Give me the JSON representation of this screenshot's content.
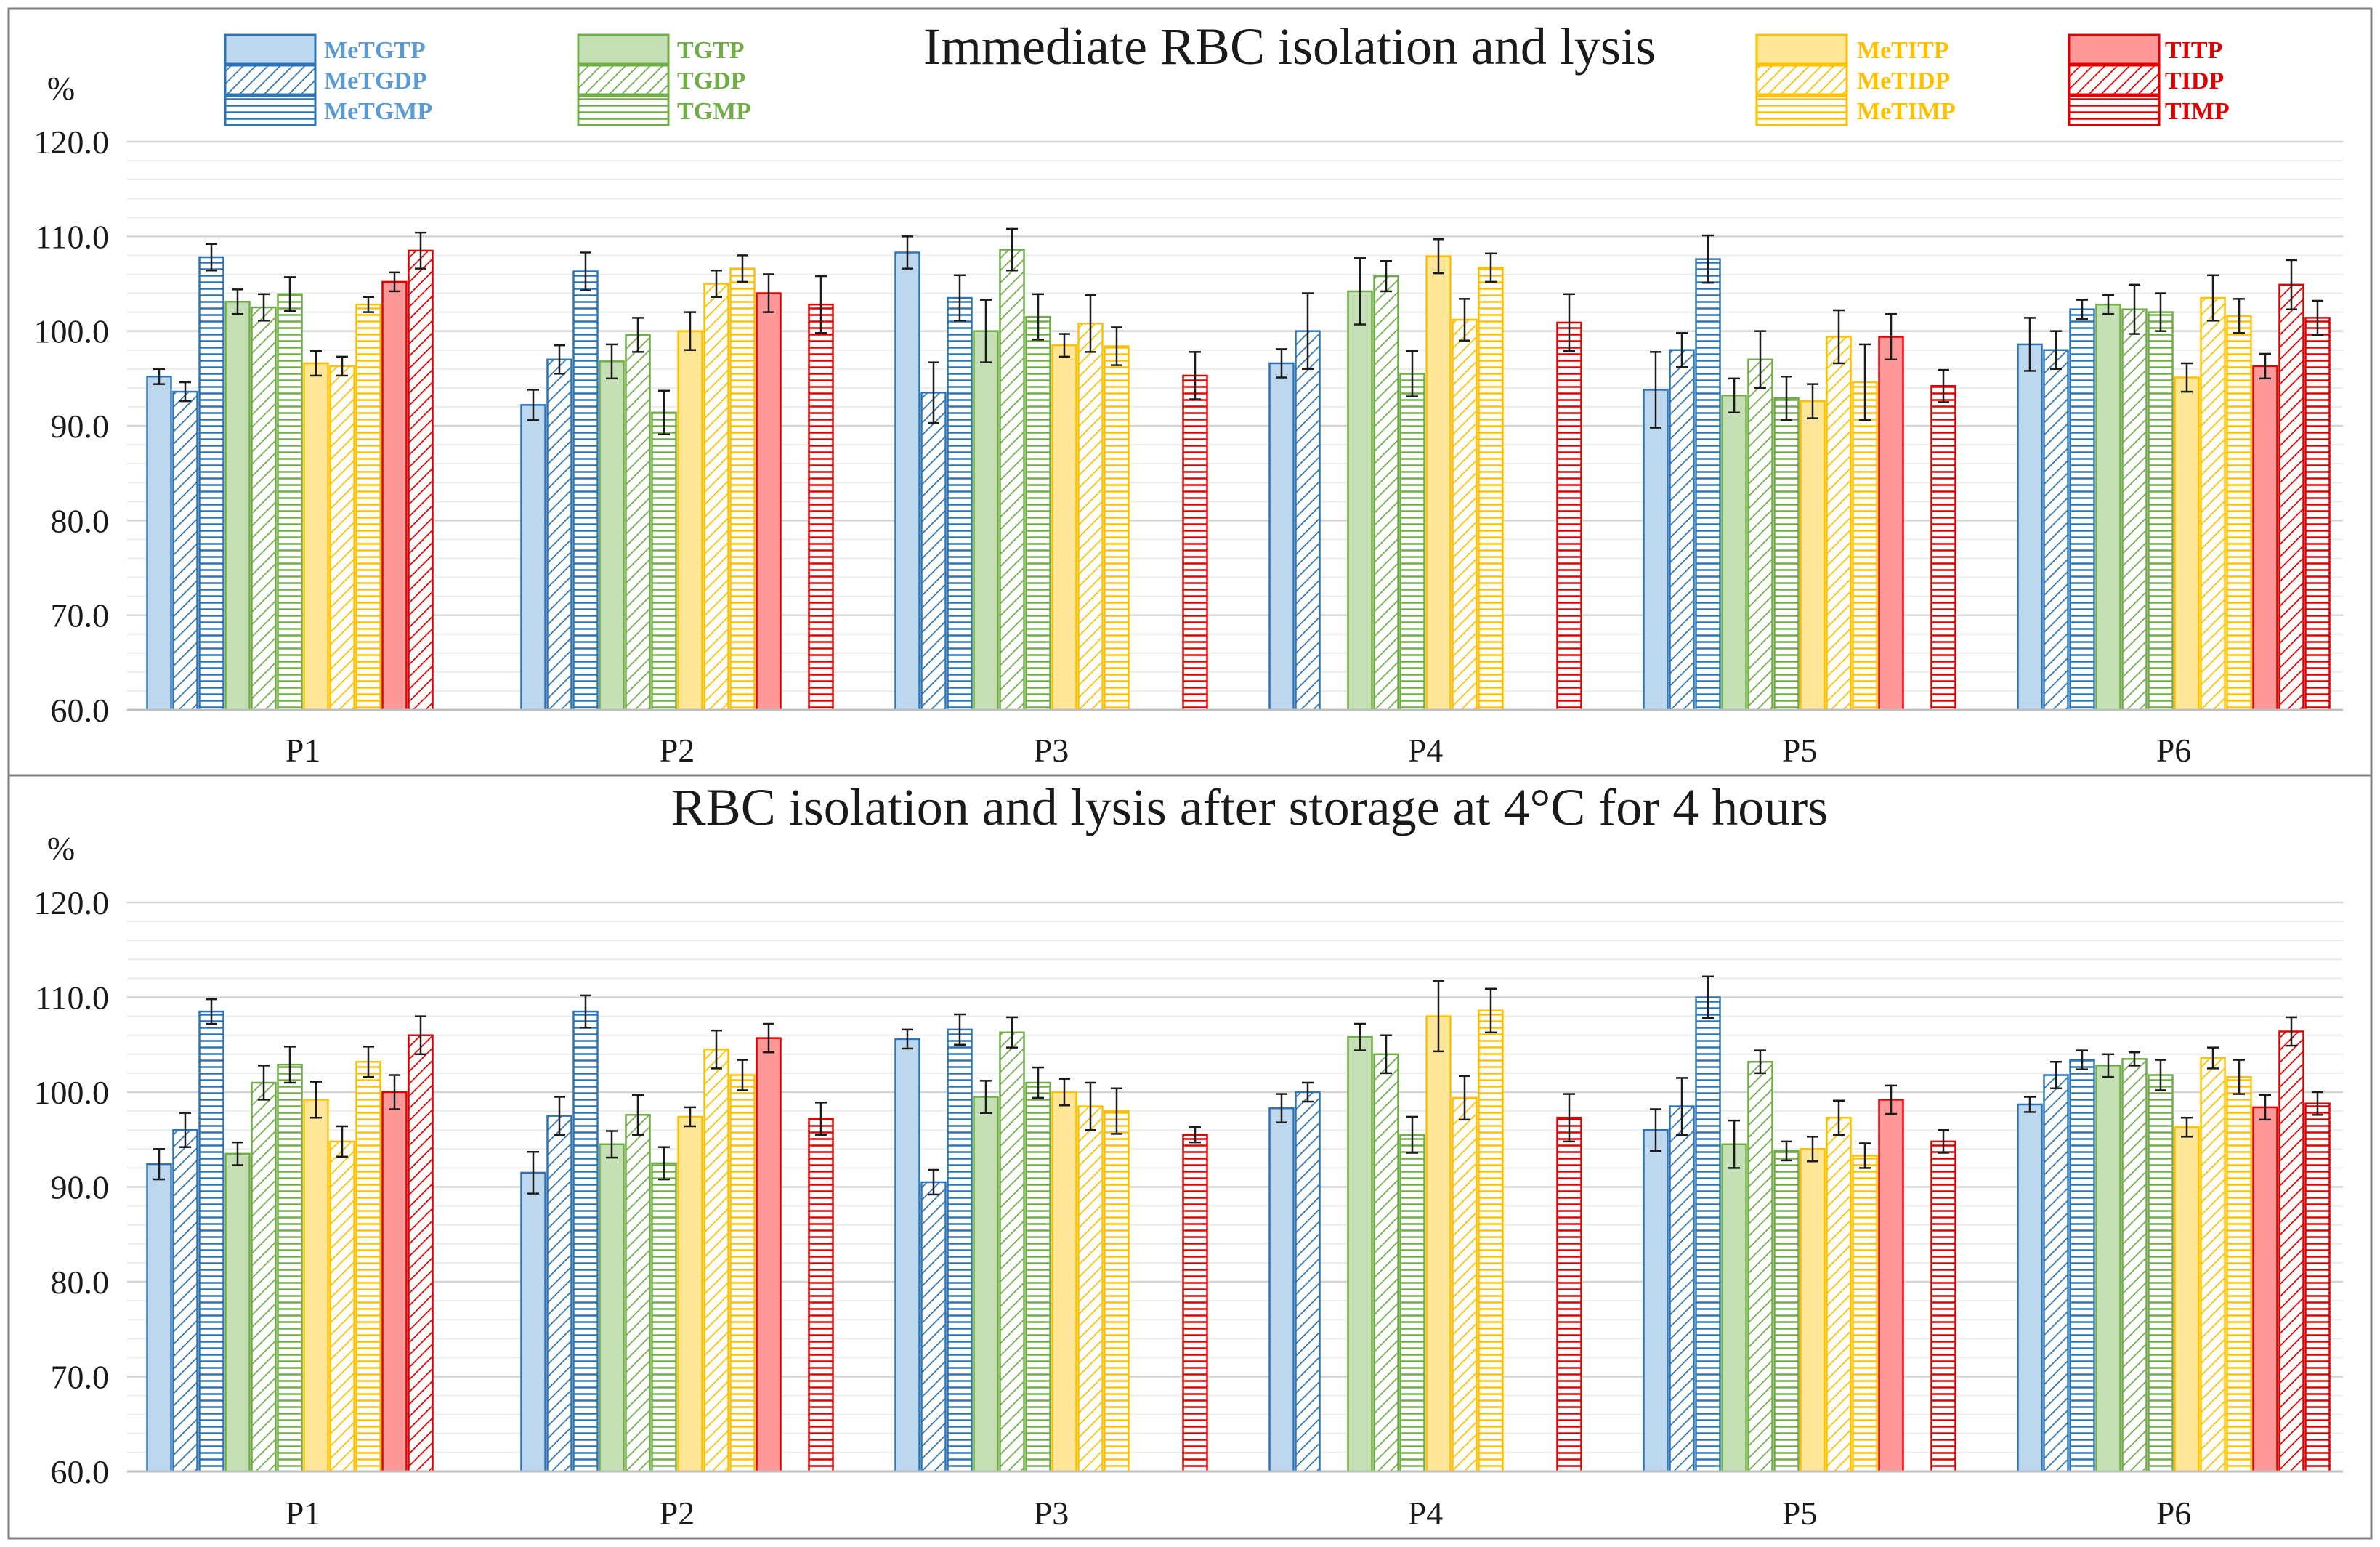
{
  "legend": {
    "groups": [
      {
        "color": "#2e75b6",
        "items": [
          "MeTGTP",
          "MeTGDP",
          "MeTGMP"
        ]
      },
      {
        "color": "#70ad47",
        "items": [
          "TGTP",
          "TGDP",
          "TGMP"
        ]
      },
      {
        "color": "#ffc000",
        "items": [
          "MeTITP",
          "MeTIDP",
          "MeTIMP"
        ]
      },
      {
        "color": "#e00000",
        "items": [
          "TITP",
          "TIDP",
          "TIMP"
        ]
      }
    ]
  },
  "colors": {
    "blue": {
      "fill": "#bdd7ee",
      "stroke": "#2e75b6"
    },
    "green": {
      "fill": "#c5e0b4",
      "stroke": "#70ad47"
    },
    "yellow": {
      "fill": "#ffe699",
      "stroke": "#ffc000"
    },
    "red": {
      "fill": "#ff9999",
      "stroke": "#e00000"
    }
  },
  "chart_data": [
    {
      "type": "bar",
      "title": "Immediate RBC isolation and lysis",
      "ylabel": "%",
      "ylim": [
        60,
        120
      ],
      "yticks": [
        "60.0",
        "70.0",
        "80.0",
        "90.0",
        "100.0",
        "110.0",
        "120.0"
      ],
      "categories": [
        "P1",
        "P2",
        "P3",
        "P4",
        "P5",
        "P6"
      ],
      "series": [
        {
          "name": "MeTGTP",
          "color": "blue",
          "pattern": "solid",
          "values": [
            95.2,
            92.2,
            108.3,
            96.6,
            93.8,
            98.6
          ],
          "errors": [
            0.8,
            1.6,
            1.7,
            1.5,
            4.0,
            2.8
          ]
        },
        {
          "name": "MeTGDP",
          "color": "blue",
          "pattern": "diag",
          "values": [
            93.6,
            97.0,
            93.5,
            100.0,
            98.0,
            98.0
          ],
          "errors": [
            1.0,
            1.5,
            3.2,
            4.0,
            1.8,
            2.0
          ]
        },
        {
          "name": "MeTGMP",
          "color": "blue",
          "pattern": "horiz",
          "values": [
            107.8,
            106.3,
            103.5,
            null,
            107.6,
            102.3
          ],
          "errors": [
            1.4,
            2.0,
            2.4,
            null,
            2.5,
            1.0
          ]
        },
        {
          "name": "TGTP",
          "color": "green",
          "pattern": "solid",
          "values": [
            103.1,
            96.8,
            100.0,
            104.2,
            93.2,
            102.8
          ],
          "errors": [
            1.3,
            1.8,
            3.3,
            3.5,
            1.8,
            1.0
          ]
        },
        {
          "name": "TGDP",
          "color": "green",
          "pattern": "diag",
          "values": [
            102.5,
            99.6,
            108.6,
            105.8,
            97.0,
            102.3
          ],
          "errors": [
            1.4,
            1.8,
            2.2,
            1.6,
            3.0,
            2.6
          ]
        },
        {
          "name": "TGMP",
          "color": "green",
          "pattern": "horiz",
          "values": [
            103.9,
            91.4,
            101.5,
            95.5,
            92.9,
            102.0
          ],
          "errors": [
            1.8,
            2.3,
            2.4,
            2.4,
            2.3,
            2.0
          ]
        },
        {
          "name": "MeTITP",
          "color": "yellow",
          "pattern": "solid",
          "values": [
            96.6,
            100.0,
            98.5,
            107.9,
            92.6,
            95.1
          ],
          "errors": [
            1.3,
            2.0,
            1.2,
            1.8,
            1.8,
            1.5
          ]
        },
        {
          "name": "MeTIDP",
          "color": "yellow",
          "pattern": "diag",
          "values": [
            96.3,
            105.0,
            100.8,
            101.2,
            99.4,
            103.5
          ],
          "errors": [
            1.0,
            1.4,
            3.0,
            2.2,
            2.8,
            2.4
          ]
        },
        {
          "name": "MeTIMP",
          "color": "yellow",
          "pattern": "horiz",
          "values": [
            102.8,
            106.6,
            98.4,
            106.7,
            94.6,
            101.6
          ],
          "errors": [
            0.8,
            1.4,
            2.0,
            1.5,
            4.0,
            1.8
          ]
        },
        {
          "name": "TITP",
          "color": "red",
          "pattern": "solid",
          "values": [
            105.2,
            104.0,
            null,
            null,
            99.4,
            96.3
          ],
          "errors": [
            1.0,
            2.0,
            null,
            null,
            2.4,
            1.3
          ]
        },
        {
          "name": "TIDP",
          "color": "red",
          "pattern": "diag",
          "values": [
            108.5,
            null,
            null,
            null,
            null,
            104.9
          ],
          "errors": [
            1.9,
            null,
            null,
            null,
            null,
            2.6
          ]
        },
        {
          "name": "TIMP",
          "color": "red",
          "pattern": "horiz",
          "values": [
            null,
            102.8,
            95.3,
            100.9,
            94.2,
            101.4
          ],
          "errors": [
            null,
            3.0,
            2.5,
            3.0,
            1.7,
            1.8
          ]
        }
      ]
    },
    {
      "type": "bar",
      "title": "RBC isolation and lysis after storage at 4°C for 4 hours",
      "ylabel": "%",
      "ylim": [
        60,
        120
      ],
      "yticks": [
        "60.0",
        "70.0",
        "80.0",
        "90.0",
        "100.0",
        "110.0",
        "120.0"
      ],
      "categories": [
        "P1",
        "P2",
        "P3",
        "P4",
        "P5",
        "P6"
      ],
      "series": [
        {
          "name": "MeTGTP",
          "color": "blue",
          "pattern": "solid",
          "values": [
            92.4,
            91.5,
            105.6,
            98.3,
            96.0,
            98.7
          ],
          "errors": [
            1.6,
            2.2,
            1.0,
            1.5,
            2.2,
            0.8
          ]
        },
        {
          "name": "MeTGDP",
          "color": "blue",
          "pattern": "diag",
          "values": [
            96.0,
            97.5,
            90.5,
            100.0,
            98.5,
            101.8
          ],
          "errors": [
            1.8,
            2.0,
            1.3,
            1.0,
            3.0,
            1.4
          ]
        },
        {
          "name": "MeTGMP",
          "color": "blue",
          "pattern": "horiz",
          "values": [
            108.5,
            108.5,
            106.6,
            null,
            110.0,
            103.4
          ],
          "errors": [
            1.3,
            1.7,
            1.6,
            null,
            2.2,
            1.0
          ]
        },
        {
          "name": "TGTP",
          "color": "green",
          "pattern": "solid",
          "values": [
            93.5,
            94.5,
            99.5,
            105.8,
            94.5,
            102.8
          ],
          "errors": [
            1.2,
            1.4,
            1.7,
            1.4,
            2.5,
            1.2
          ]
        },
        {
          "name": "TGDP",
          "color": "green",
          "pattern": "diag",
          "values": [
            101.0,
            97.6,
            106.3,
            104.0,
            103.2,
            103.5
          ],
          "errors": [
            1.8,
            2.1,
            1.6,
            2.0,
            1.2,
            0.7
          ]
        },
        {
          "name": "TGMP",
          "color": "green",
          "pattern": "horiz",
          "values": [
            102.9,
            92.5,
            101.0,
            95.5,
            93.8,
            101.8
          ],
          "errors": [
            1.9,
            1.7,
            1.6,
            1.9,
            1.0,
            1.6
          ]
        },
        {
          "name": "MeTITP",
          "color": "yellow",
          "pattern": "solid",
          "values": [
            99.2,
            97.4,
            100.0,
            108.0,
            94.0,
            96.3
          ],
          "errors": [
            1.9,
            1.0,
            1.4,
            3.7,
            1.3,
            1.0
          ]
        },
        {
          "name": "MeTIDP",
          "color": "yellow",
          "pattern": "diag",
          "values": [
            94.8,
            104.5,
            98.5,
            99.4,
            97.3,
            103.6
          ],
          "errors": [
            1.6,
            2.0,
            2.5,
            2.3,
            1.8,
            1.1
          ]
        },
        {
          "name": "MeTIMP",
          "color": "yellow",
          "pattern": "horiz",
          "values": [
            103.2,
            101.8,
            98.0,
            108.6,
            93.3,
            101.6
          ],
          "errors": [
            1.6,
            1.6,
            2.4,
            2.3,
            1.3,
            1.8
          ]
        },
        {
          "name": "TITP",
          "color": "red",
          "pattern": "solid",
          "values": [
            100.0,
            105.7,
            null,
            null,
            99.2,
            98.4
          ],
          "errors": [
            1.8,
            1.5,
            null,
            null,
            1.5,
            1.3
          ]
        },
        {
          "name": "TIDP",
          "color": "red",
          "pattern": "diag",
          "values": [
            106.0,
            null,
            null,
            null,
            null,
            106.4
          ],
          "errors": [
            2.0,
            null,
            null,
            null,
            null,
            1.5
          ]
        },
        {
          "name": "TIMP",
          "color": "red",
          "pattern": "horiz",
          "values": [
            null,
            97.2,
            95.5,
            97.3,
            94.8,
            98.8
          ],
          "errors": [
            null,
            1.7,
            0.8,
            2.5,
            1.2,
            1.2
          ]
        }
      ]
    }
  ]
}
